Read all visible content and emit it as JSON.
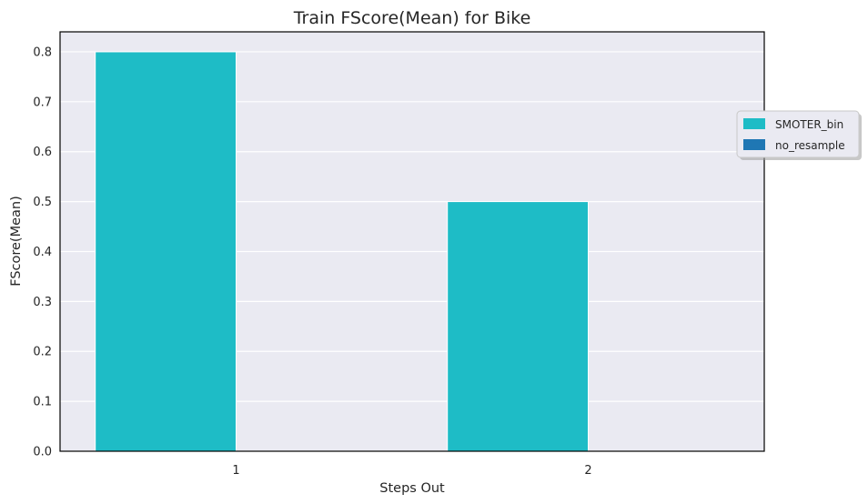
{
  "chart_data": {
    "type": "bar",
    "title": "Train FScore(Mean) for Bike",
    "xlabel": "Steps Out",
    "ylabel": "FScore(Mean)",
    "categories": [
      "1",
      "2"
    ],
    "series": [
      {
        "name": "SMOTER_bin",
        "values": [
          0.8,
          0.5
        ],
        "color": "#1ebcc6"
      },
      {
        "name": "no_resample",
        "values": [
          0,
          0
        ],
        "color": "#1f77b4"
      }
    ],
    "ylim": [
      0,
      0.84
    ],
    "yticks": [
      "0.0",
      "0.1",
      "0.2",
      "0.3",
      "0.4",
      "0.5",
      "0.6",
      "0.7",
      "0.8"
    ],
    "grid": true,
    "legend_position": "right, outside plot",
    "background": "#eaeaf2"
  }
}
